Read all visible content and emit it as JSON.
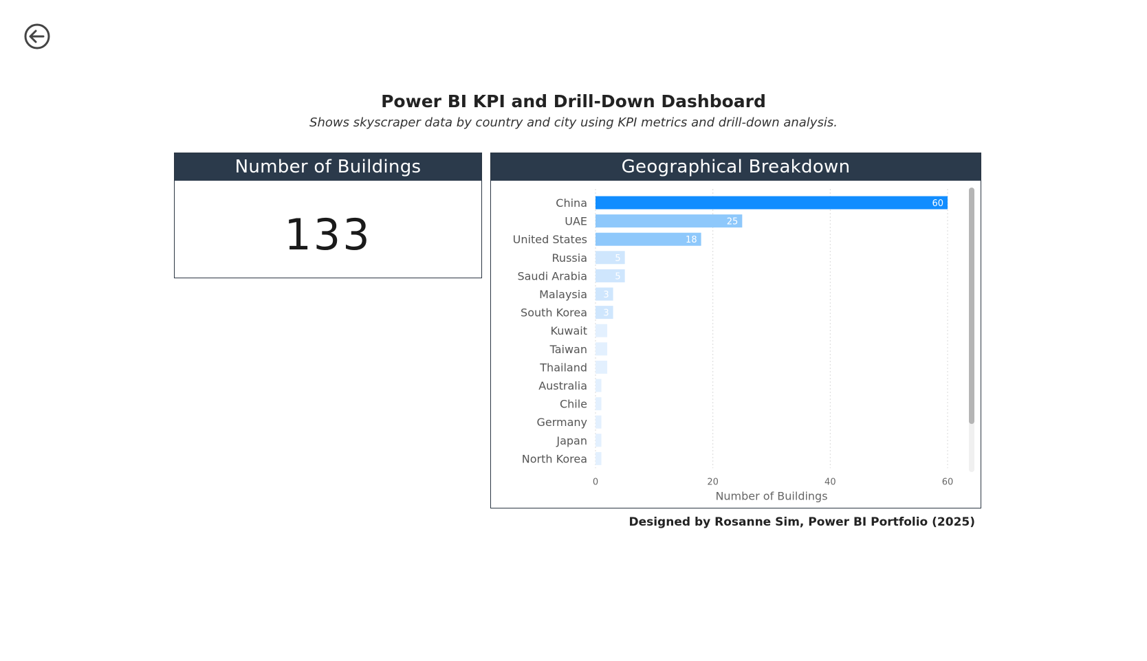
{
  "page": {
    "title": "Power BI KPI and Drill-Down Dashboard",
    "subtitle": "Shows skyscraper data by country and city using KPI metrics and drill-down analysis.",
    "credit": "Designed by Rosanne Sim, Power BI Portfolio (2025)"
  },
  "nav": {
    "back_icon": "back-arrow-circle-icon"
  },
  "kpi": {
    "header": "Number of Buildings",
    "value": "133"
  },
  "geo": {
    "header": "Geographical Breakdown"
  },
  "colors": {
    "header_bg": "#2b3a4b",
    "bar_strong": "#118dff",
    "bar_medium": "#8ec8fb",
    "bar_light": "#cfe6fd",
    "bar_lighter": "#e3f0fe"
  },
  "chart_data": {
    "type": "bar",
    "orientation": "horizontal",
    "categories": [
      "China",
      "UAE",
      "United States",
      "Russia",
      "Saudi Arabia",
      "Malaysia",
      "South Korea",
      "Kuwait",
      "Taiwan",
      "Thailand",
      "Australia",
      "Chile",
      "Germany",
      "Japan",
      "North Korea"
    ],
    "values": [
      60,
      25,
      18,
      5,
      5,
      3,
      3,
      2,
      2,
      2,
      1,
      1,
      1,
      1,
      1
    ],
    "data_labels": [
      "60",
      "25",
      "18",
      "5",
      "5",
      "3",
      "3",
      "",
      "",
      "",
      "",
      "",
      "",
      "",
      ""
    ],
    "xlabel": "Number of Buildings",
    "ylabel": "",
    "xlim": [
      0,
      60
    ],
    "xticks": [
      "0",
      "20",
      "40",
      "60"
    ],
    "grid": "vertical-dashed",
    "legend": "none"
  }
}
